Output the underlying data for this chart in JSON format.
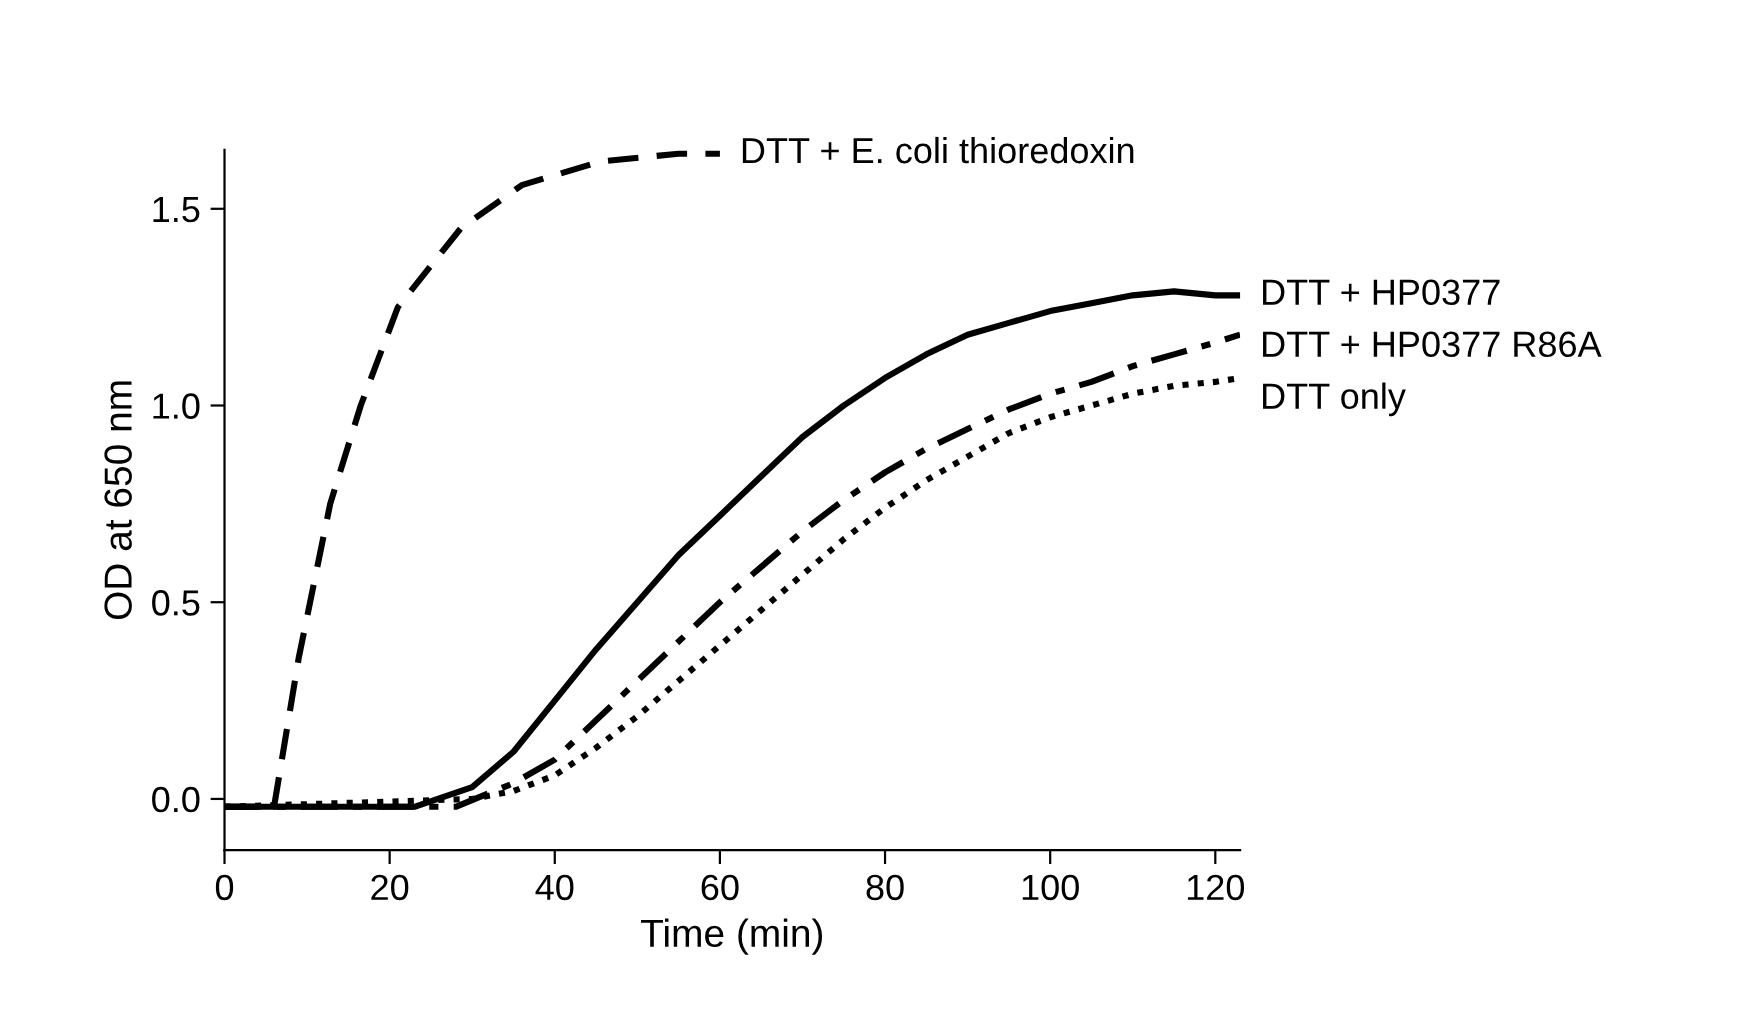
{
  "chart_data": {
    "type": "line",
    "xlabel": "Time (min)",
    "ylabel": "OD at 650 nm",
    "xlim": [
      0,
      123
    ],
    "ylim": [
      -0.13,
      1.65
    ],
    "xticks": [
      0,
      20,
      40,
      60,
      80,
      100,
      120
    ],
    "yticks": [
      {
        "value": 0,
        "label": "0.0"
      },
      {
        "value": 0.5,
        "label": "0.5"
      },
      {
        "value": 1,
        "label": "1.0"
      },
      {
        "value": 1.5,
        "label": "1.5"
      }
    ],
    "grid": false,
    "marker": "none",
    "series": [
      {
        "name": "DTT + E. coli thioredoxin",
        "color": "#000000",
        "line_style": "dashed",
        "x": [
          0,
          6,
          9,
          12.8,
          16.5,
          21,
          28.6,
          36,
          45.5,
          55,
          60
        ],
        "values": [
          -0.02,
          -0.02,
          0.36,
          0.75,
          1.0,
          1.25,
          1.45,
          1.56,
          1.62,
          1.64,
          1.64
        ]
      },
      {
        "name": "DTT + HP0377",
        "color": "#000000",
        "line_style": "solid",
        "x": [
          0,
          23,
          30,
          35,
          40,
          45,
          50,
          55,
          60,
          65,
          70,
          75,
          80,
          85,
          90,
          95,
          100,
          105,
          110,
          115,
          120,
          123
        ],
        "values": [
          -0.02,
          -0.02,
          0.03,
          0.12,
          0.25,
          0.38,
          0.5,
          0.62,
          0.72,
          0.82,
          0.92,
          1.0,
          1.07,
          1.13,
          1.18,
          1.21,
          1.24,
          1.26,
          1.28,
          1.29,
          1.28,
          1.28
        ]
      },
      {
        "name": "DTT + HP0377 R86A",
        "color": "#000000",
        "line_style": "dashdot",
        "x": [
          0,
          28,
          35,
          40,
          45,
          50,
          55,
          60,
          65,
          70,
          75,
          80,
          85,
          90,
          95,
          100,
          105,
          110,
          115,
          120,
          123
        ],
        "values": [
          -0.02,
          -0.02,
          0.04,
          0.1,
          0.2,
          0.3,
          0.4,
          0.5,
          0.59,
          0.68,
          0.76,
          0.83,
          0.89,
          0.94,
          0.99,
          1.03,
          1.06,
          1.1,
          1.13,
          1.16,
          1.18
        ]
      },
      {
        "name": "DTT only",
        "color": "#000000",
        "line_style": "dotted",
        "x": [
          0,
          30,
          35,
          40,
          45,
          50,
          55,
          60,
          65,
          70,
          75,
          80,
          85,
          90,
          95,
          100,
          105,
          110,
          115,
          120,
          123
        ],
        "values": [
          -0.02,
          0.0,
          0.02,
          0.06,
          0.13,
          0.21,
          0.3,
          0.39,
          0.48,
          0.57,
          0.66,
          0.74,
          0.81,
          0.87,
          0.93,
          0.97,
          1.0,
          1.03,
          1.05,
          1.06,
          1.07
        ]
      }
    ]
  }
}
